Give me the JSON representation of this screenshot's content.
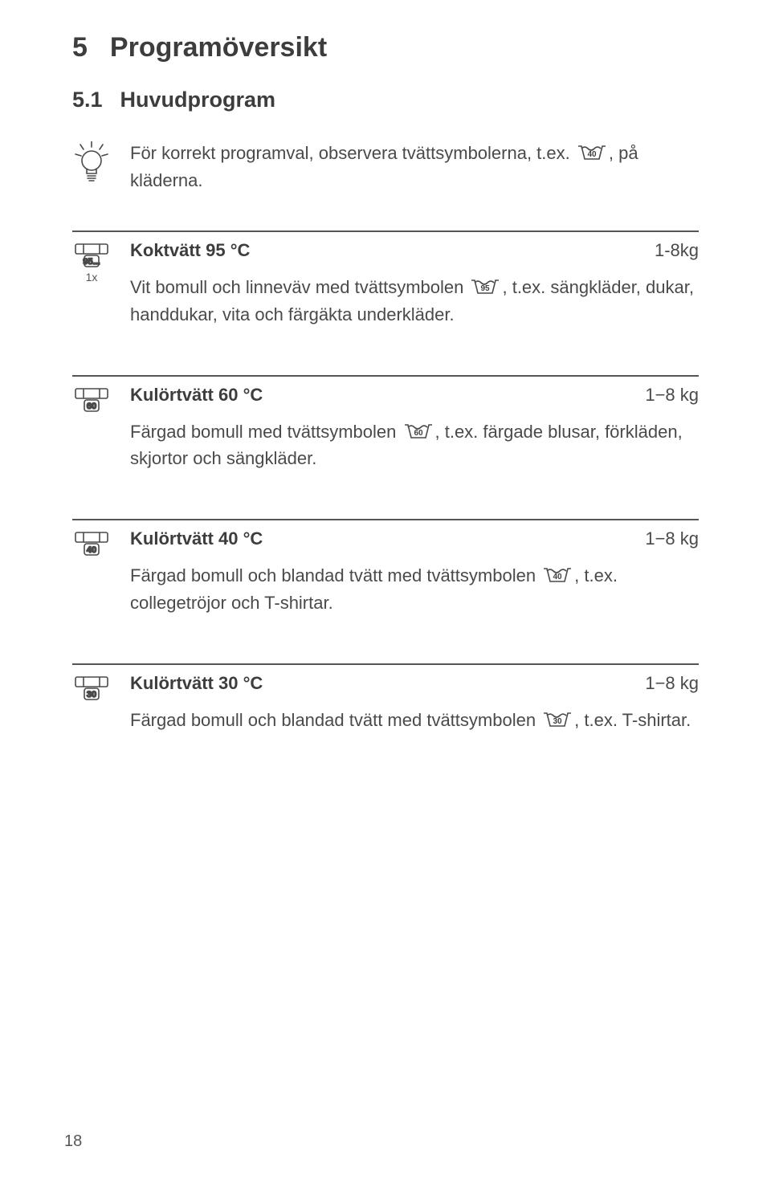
{
  "header": {
    "number": "5",
    "title": "Programöversikt"
  },
  "subheader": {
    "number": "5.1",
    "title": "Huvudprogram"
  },
  "intro": {
    "text_before": "För korrekt programval, observera tvättsymbolerna, t.ex. ",
    "symbol_temp": "40",
    "text_after": ", på kläderna."
  },
  "sections": [
    {
      "dial": {
        "label": "95...",
        "sub": "1x"
      },
      "title": "Koktvätt 95 °C",
      "capacity": "1-8kg",
      "desc_before": "Vit bomull och linneväv med tvättsymbolen ",
      "symbol_temp": "95",
      "desc_after": ", t.ex. sängkläder, dukar, handdukar, vita och färgäkta underkläder."
    },
    {
      "dial": {
        "label": "60",
        "sub": ""
      },
      "title": "Kulörtvätt 60 °C",
      "capacity": "1−8 kg",
      "desc_before": "Färgad bomull med tvättsymbolen ",
      "symbol_temp": "60",
      "desc_after": ", t.ex. färgade blusar, förkläden, skjortor och sängkläder."
    },
    {
      "dial": {
        "label": "40",
        "sub": ""
      },
      "title": "Kulörtvätt 40 °C",
      "capacity": "1−8 kg",
      "desc_before": "Färgad bomull och blandad tvätt med tvättsymbolen ",
      "symbol_temp": "40",
      "desc_after": ", t.ex. collegetröjor och T-shirtar."
    },
    {
      "dial": {
        "label": "30",
        "sub": ""
      },
      "title": "Kulörtvätt 30 °C",
      "capacity": "1−8 kg",
      "desc_before": "Färgad bomull och blandad tvätt med tvättsymbolen ",
      "symbol_temp": "30",
      "desc_after": ", t.ex. T-shirtar."
    }
  ],
  "page_number": "18",
  "colors": {
    "text": "#4a4a4a",
    "heading": "#3d3d3d",
    "rule": "#555555",
    "bg": "#ffffff"
  },
  "fonts": {
    "h1_size": 34,
    "h2_size": 27,
    "body_size": 22
  }
}
